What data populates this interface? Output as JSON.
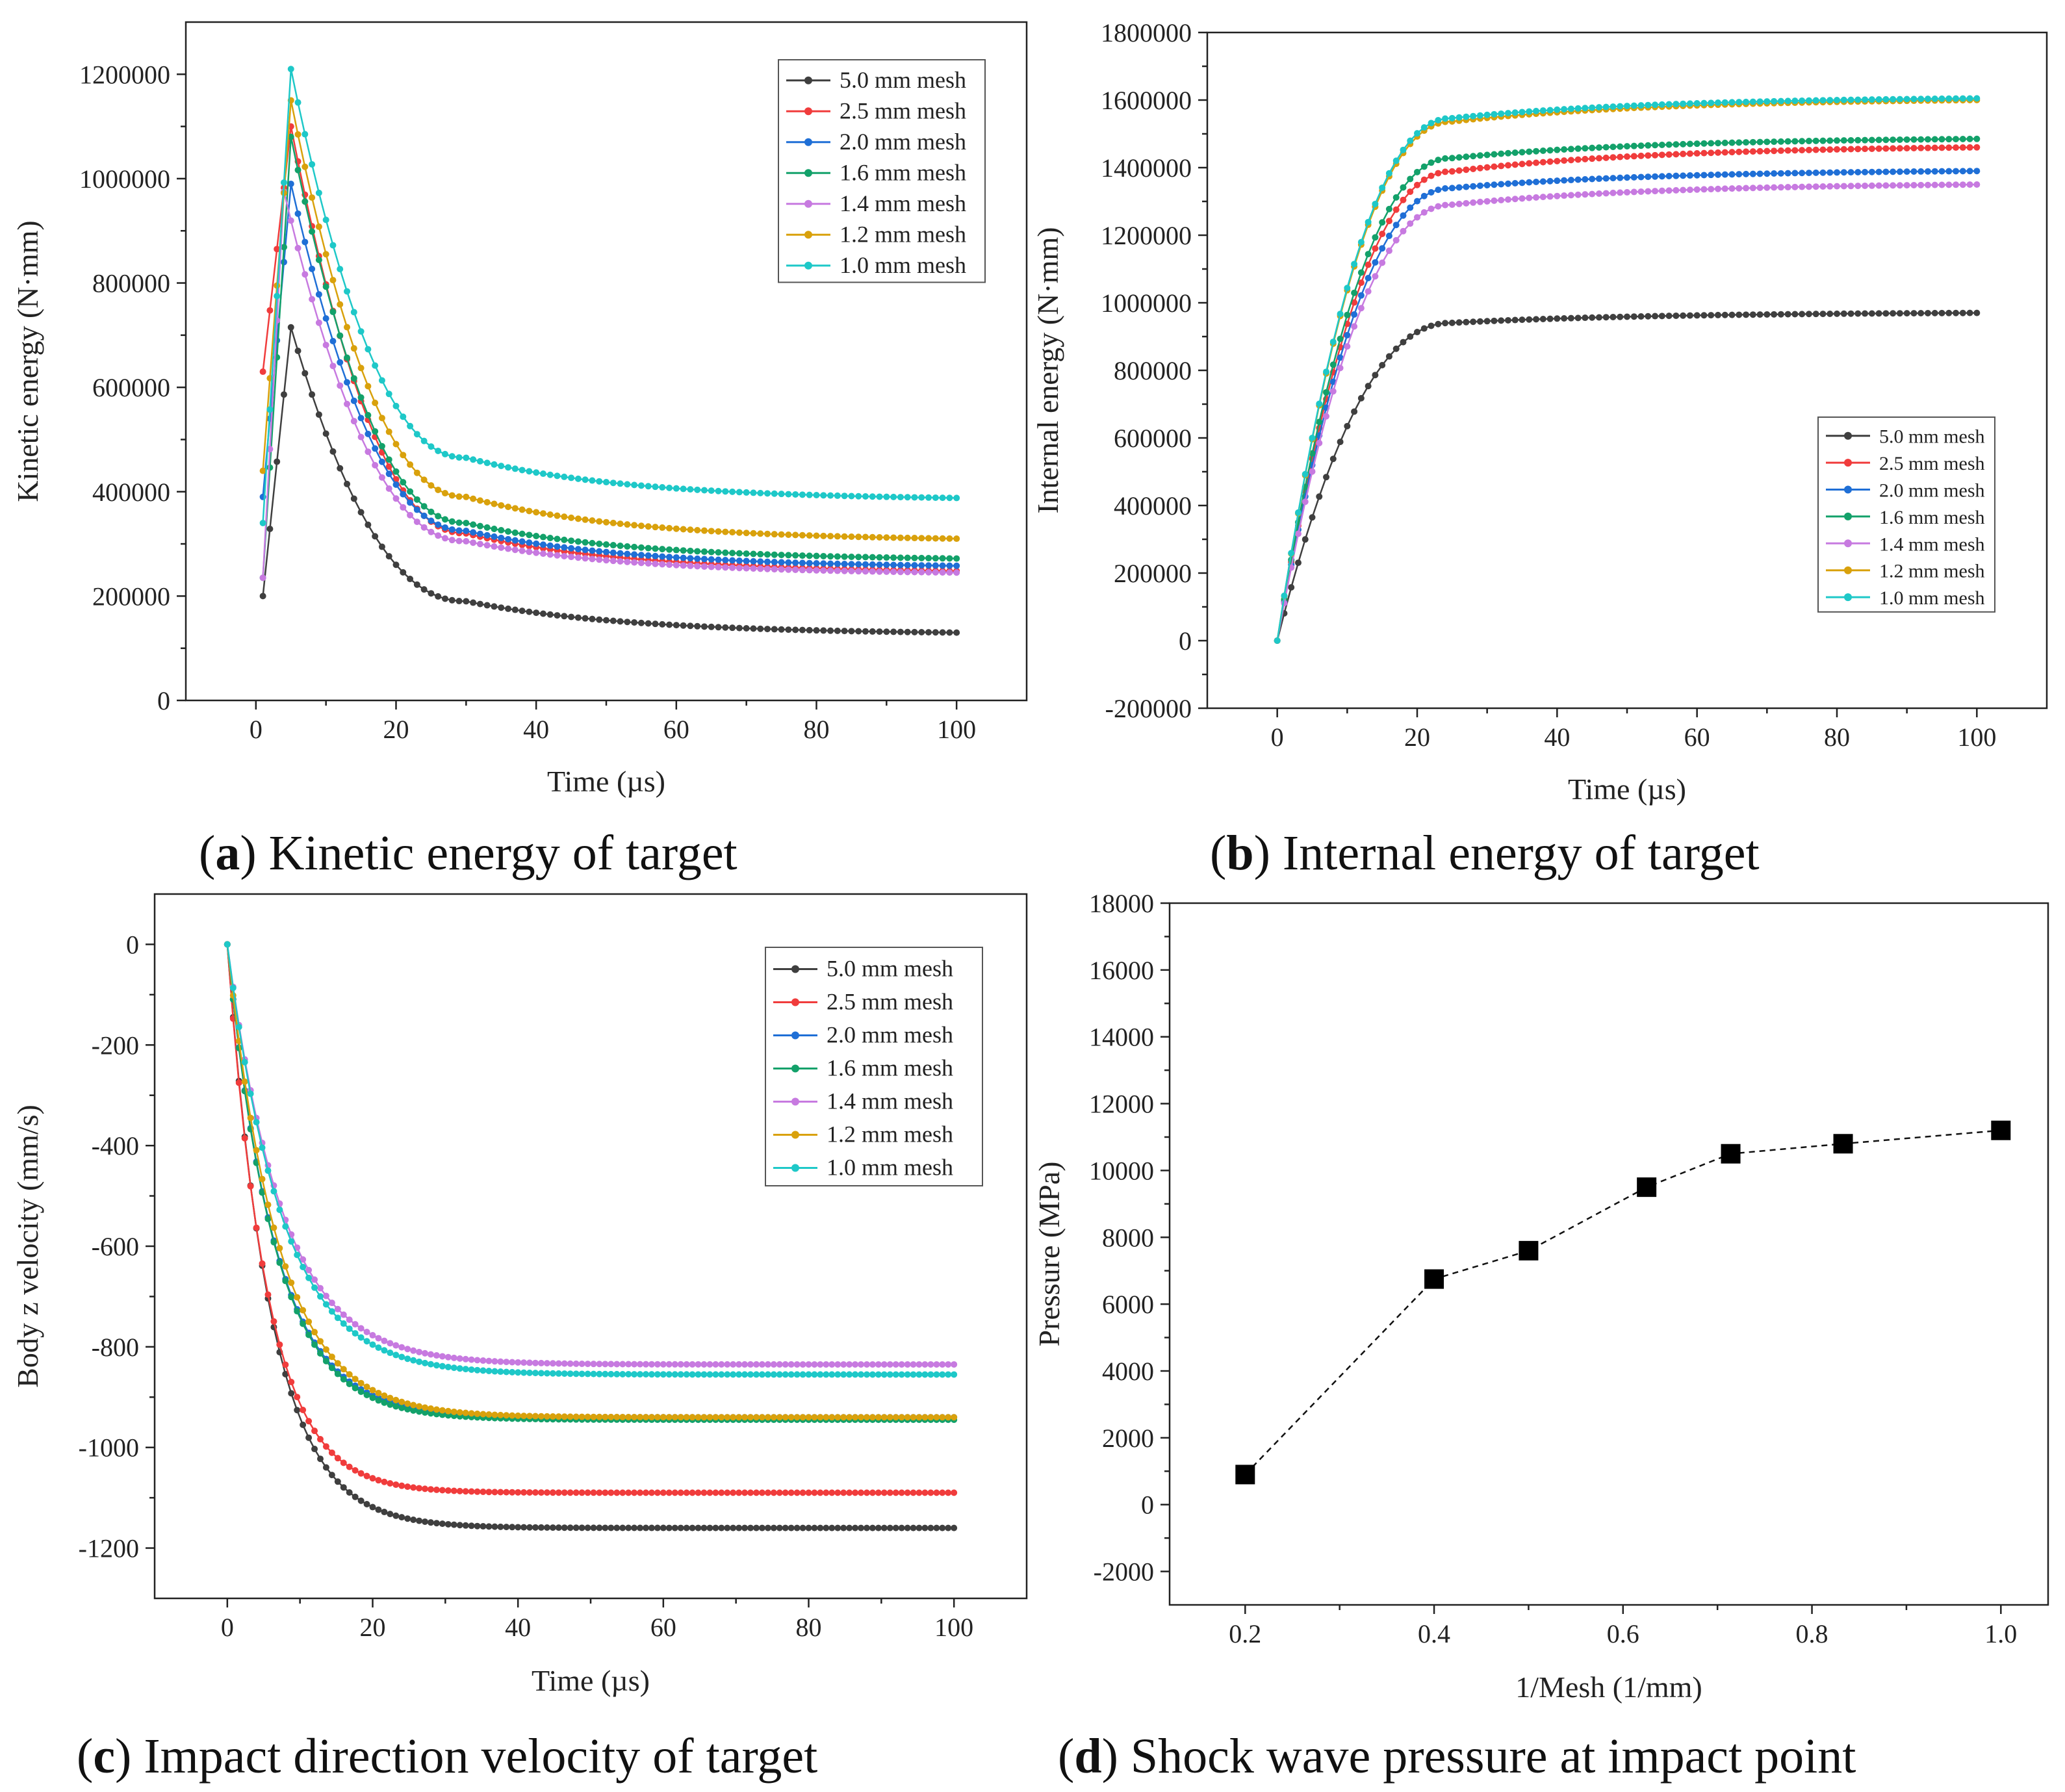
{
  "colors": {
    "5.0": "#3f3f3f",
    "2.5": "#f03c3c",
    "2.0": "#1f6fd6",
    "1.6": "#13a16a",
    "1.4": "#c77ae0",
    "1.2": "#d9a10c",
    "1.0": "#1ec8c8"
  },
  "chart_data": [
    {
      "id": "a",
      "type": "line",
      "caption_letter": "a",
      "caption_text": " Kinetic energy of target",
      "xlabel": "Time (µs)",
      "ylabel": "Kinetic energy (N·mm)",
      "xlim": [
        -10,
        110
      ],
      "ylim": [
        0,
        1300000
      ],
      "xticks": [
        "0",
        "20",
        "40",
        "60",
        "80",
        "100"
      ],
      "xtick_values": [
        0,
        20,
        40,
        60,
        80,
        100
      ],
      "yticks": [
        "0",
        "200000",
        "400000",
        "600000",
        "800000",
        "1000000",
        "1200000"
      ],
      "ytick_values": [
        0,
        200000,
        400000,
        600000,
        800000,
        1000000,
        1200000
      ],
      "legend_position": "top-right",
      "series": [
        {
          "name": "5.0 mm mesh",
          "key": "5.0",
          "peak_t": 5,
          "peak": 715000,
          "t1_value": 200000,
          "t_decay": 9,
          "final_t": 30,
          "final": 190000,
          "end": 130000
        },
        {
          "name": "2.5 mm mesh",
          "key": "2.5",
          "peak_t": 5,
          "peak": 1100000,
          "t1_value": 630000,
          "t_decay": 8,
          "final_t": 30,
          "final": 320000,
          "end": 248000
        },
        {
          "name": "2.0 mm mesh",
          "key": "2.0",
          "peak_t": 5,
          "peak": 990000,
          "t1_value": 390000,
          "t_decay": 8,
          "final_t": 30,
          "final": 325000,
          "end": 258000
        },
        {
          "name": "1.6 mm mesh",
          "key": "1.6",
          "peak_t": 5,
          "peak": 1080000,
          "t1_value": 235000,
          "t_decay": 8,
          "final_t": 30,
          "final": 340000,
          "end": 272000
        },
        {
          "name": "1.4 mm mesh",
          "key": "1.4",
          "peak_t": 4,
          "peak": 975000,
          "t1_value": 235000,
          "t_decay": 8,
          "final_t": 30,
          "final": 305000,
          "end": 245000
        },
        {
          "name": "1.2 mm mesh",
          "key": "1.2",
          "peak_t": 5,
          "peak": 1150000,
          "t1_value": 440000,
          "t_decay": 9,
          "final_t": 30,
          "final": 390000,
          "end": 310000
        },
        {
          "name": "1.0 mm mesh",
          "key": "1.0",
          "peak_t": 5,
          "peak": 1210000,
          "t1_value": 340000,
          "t_decay": 10,
          "final_t": 30,
          "final": 465000,
          "end": 388000
        }
      ]
    },
    {
      "id": "b",
      "type": "line",
      "caption_letter": "b",
      "caption_text": " Internal energy of target",
      "xlabel": "Time (µs)",
      "ylabel": "Internal energy (N·mm)",
      "xlim": [
        -10,
        110
      ],
      "ylim": [
        -200000,
        1800000
      ],
      "xticks": [
        "0",
        "20",
        "40",
        "60",
        "80",
        "100"
      ],
      "xtick_values": [
        0,
        20,
        40,
        60,
        80,
        100
      ],
      "yticks": [
        "-200000",
        "0",
        "200000",
        "400000",
        "600000",
        "800000",
        "1000000",
        "1200000",
        "1400000",
        "1600000",
        "1800000"
      ],
      "ytick_values": [
        -200000,
        0,
        200000,
        400000,
        600000,
        800000,
        1000000,
        1200000,
        1400000,
        1600000,
        1800000
      ],
      "legend_position": "lower-right",
      "series": [
        {
          "name": "5.0 mm mesh",
          "key": "5.0",
          "plateau": 955000,
          "t_knee": 25,
          "end": 970000
        },
        {
          "name": "2.5 mm mesh",
          "key": "2.5",
          "plateau": 1410000,
          "t_knee": 25,
          "end": 1460000
        },
        {
          "name": "2.0 mm mesh",
          "key": "2.0",
          "plateau": 1360000,
          "t_knee": 25,
          "end": 1390000
        },
        {
          "name": "1.6 mm mesh",
          "key": "1.6",
          "plateau": 1450000,
          "t_knee": 25,
          "end": 1485000
        },
        {
          "name": "1.4 mm mesh",
          "key": "1.4",
          "plateau": 1310000,
          "t_knee": 25,
          "end": 1350000
        },
        {
          "name": "1.2 mm mesh",
          "key": "1.2",
          "plateau": 1560000,
          "t_knee": 25,
          "end": 1600000
        },
        {
          "name": "1.0 mm mesh",
          "key": "1.0",
          "plateau": 1570000,
          "t_knee": 25,
          "end": 1605000
        }
      ]
    },
    {
      "id": "c",
      "type": "line",
      "caption_letter": "c",
      "caption_text": " Impact direction velocity of target",
      "xlabel": "Time (µs)",
      "ylabel": "Body z velocity (mm/s)",
      "xlim": [
        -10,
        110
      ],
      "ylim": [
        -1300,
        100
      ],
      "xticks": [
        "0",
        "20",
        "40",
        "60",
        "80",
        "100"
      ],
      "xtick_values": [
        0,
        20,
        40,
        60,
        80,
        100
      ],
      "yticks": [
        "-1200",
        "-1000",
        "-800",
        "-600",
        "-400",
        "-200",
        "0"
      ],
      "ytick_values": [
        -1200,
        -1000,
        -800,
        -600,
        -400,
        -200,
        0
      ],
      "legend_position": "top-right",
      "series": [
        {
          "name": "5.0 mm mesh",
          "key": "5.0",
          "final": -1160,
          "tau": 6
        },
        {
          "name": "2.5 mm mesh",
          "key": "2.5",
          "final": -1090,
          "tau": 5.5
        },
        {
          "name": "2.0 mm mesh",
          "key": "2.0",
          "final": -940,
          "tau": 6.5
        },
        {
          "name": "1.6 mm mesh",
          "key": "1.6",
          "final": -945,
          "tau": 6.5
        },
        {
          "name": "1.4 mm mesh",
          "key": "1.4",
          "final": -835,
          "tau": 7.5
        },
        {
          "name": "1.2 mm mesh",
          "key": "1.2",
          "final": -940,
          "tau": 7
        },
        {
          "name": "1.0 mm mesh",
          "key": "1.0",
          "final": -855,
          "tau": 7.5
        }
      ]
    },
    {
      "id": "d",
      "type": "scatter",
      "caption_letter": "d",
      "caption_text": " Shock wave pressure at impact point",
      "xlabel": "1/Mesh (1/mm)",
      "ylabel": "Pressure (MPa)",
      "xlim": [
        0.12,
        1.05
      ],
      "ylim": [
        -3000,
        18000
      ],
      "xticks": [
        "0.2",
        "0.4",
        "0.6",
        "0.8",
        "1.0"
      ],
      "xtick_values": [
        0.2,
        0.4,
        0.6,
        0.8,
        1.0
      ],
      "yticks": [
        "-2000",
        "0",
        "2000",
        "4000",
        "6000",
        "8000",
        "10000",
        "12000",
        "14000",
        "16000",
        "18000"
      ],
      "ytick_values": [
        -2000,
        0,
        2000,
        4000,
        6000,
        8000,
        10000,
        12000,
        14000,
        16000,
        18000
      ],
      "x": [
        0.2,
        0.4,
        0.5,
        0.625,
        0.714,
        0.833,
        1.0
      ],
      "y": [
        900,
        6750,
        7600,
        9500,
        10500,
        10800,
        11200
      ]
    }
  ]
}
